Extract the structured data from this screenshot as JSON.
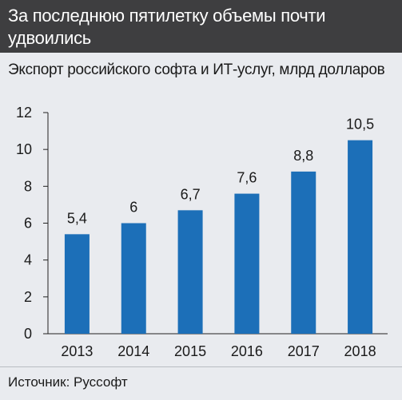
{
  "header": {
    "title": "За последнюю пятилетку объемы почти удвоились",
    "background_color": "#3e3e40"
  },
  "source": "Источник: Руссофт",
  "chart_data": {
    "type": "bar",
    "title": "Экспорт российского софта и ИТ-услуг, млрд долларов",
    "categories": [
      "2013",
      "2014",
      "2015",
      "2016",
      "2017",
      "2018"
    ],
    "values": [
      5.4,
      6,
      6.7,
      7.6,
      8.8,
      10.5
    ],
    "value_labels": [
      "5,4",
      "6",
      "6,7",
      "7,6",
      "8,8",
      "10,5"
    ],
    "ylim": [
      0,
      12
    ],
    "yticks": [
      0,
      2,
      4,
      6,
      8,
      10,
      12
    ],
    "xlabel": "",
    "ylabel": "",
    "grid": false,
    "legend": "none",
    "bar_color": "#1c6fb8"
  }
}
